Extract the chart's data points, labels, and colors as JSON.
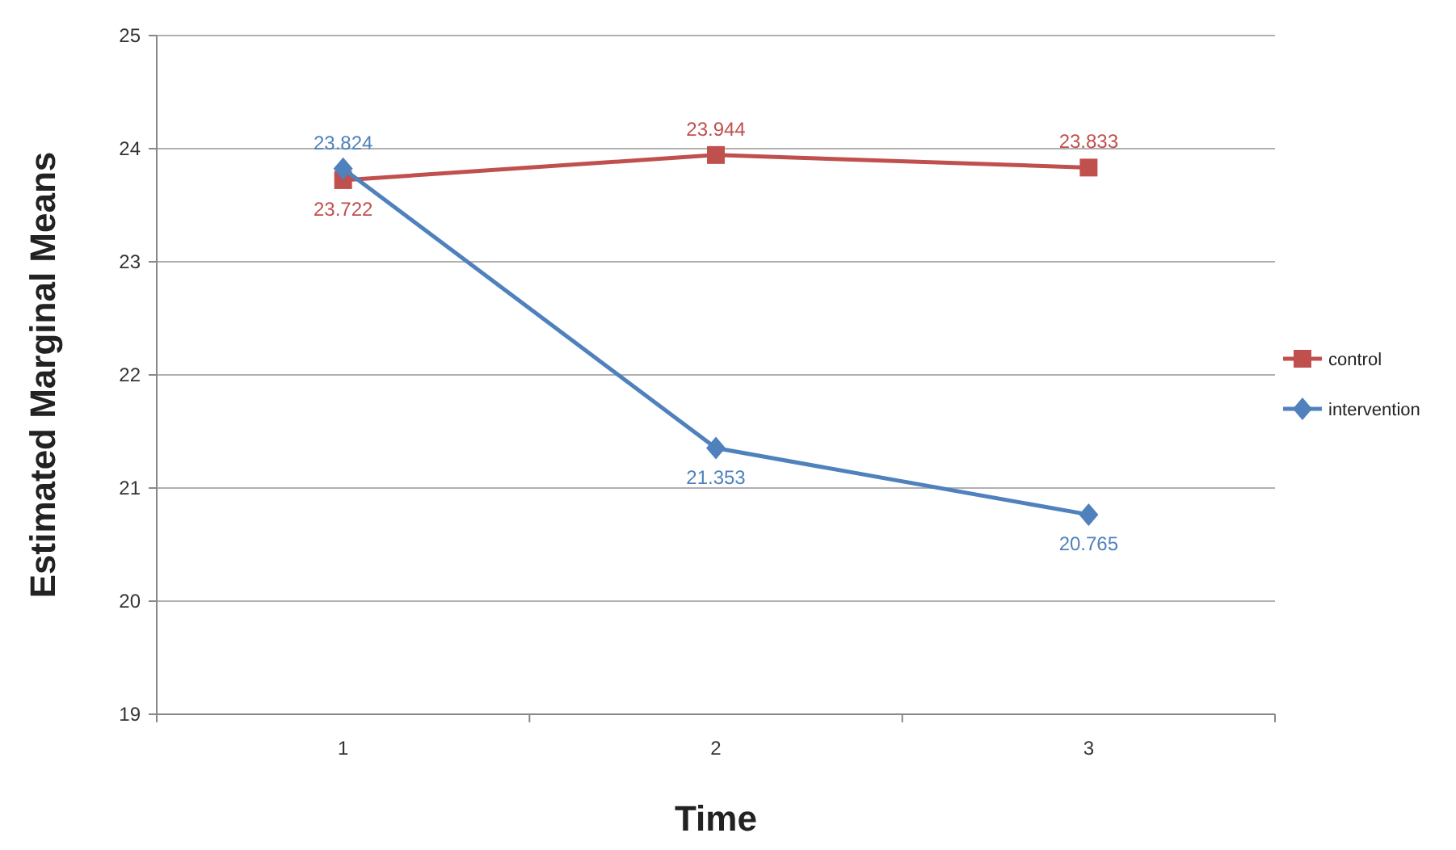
{
  "chart_data": {
    "type": "line",
    "xlabel": "Time",
    "ylabel": "Estimated Marginal Means",
    "categories": [
      "1",
      "2",
      "3"
    ],
    "series": [
      {
        "name": "control",
        "color": "#c0504d",
        "marker": "square",
        "values": [
          23.722,
          23.944,
          23.833
        ]
      },
      {
        "name": "intervention",
        "color": "#4f81bd",
        "marker": "diamond",
        "values": [
          23.824,
          21.353,
          20.765
        ]
      }
    ],
    "ylim": [
      19,
      25
    ],
    "yticks": [
      19,
      20,
      21,
      22,
      23,
      24,
      25
    ],
    "grid": "y",
    "legend": "right",
    "data_labels": true
  }
}
